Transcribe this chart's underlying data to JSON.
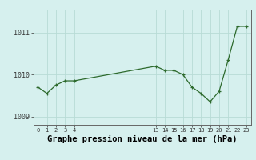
{
  "x": [
    0,
    1,
    2,
    3,
    4,
    13,
    14,
    15,
    16,
    17,
    18,
    19,
    20,
    21,
    22,
    23
  ],
  "y": [
    1009.7,
    1009.55,
    1009.75,
    1009.85,
    1009.85,
    1010.2,
    1010.1,
    1010.1,
    1010.0,
    1009.7,
    1009.55,
    1009.35,
    1009.6,
    1010.35,
    1011.15,
    1011.15
  ],
  "line_color": "#2d6a2d",
  "marker_color": "#2d6a2d",
  "bg_color": "#d6f0ee",
  "grid_color": "#b8dbd6",
  "xlabel": "Graphe pression niveau de la mer (hPa)",
  "xlabel_fontsize": 7.5,
  "xticks": [
    0,
    1,
    2,
    3,
    4,
    13,
    14,
    15,
    16,
    17,
    18,
    19,
    20,
    21,
    22,
    23
  ],
  "yticks": [
    1009,
    1010,
    1011
  ],
  "ylim": [
    1008.8,
    1011.55
  ],
  "xlim": [
    -0.5,
    23.5
  ]
}
